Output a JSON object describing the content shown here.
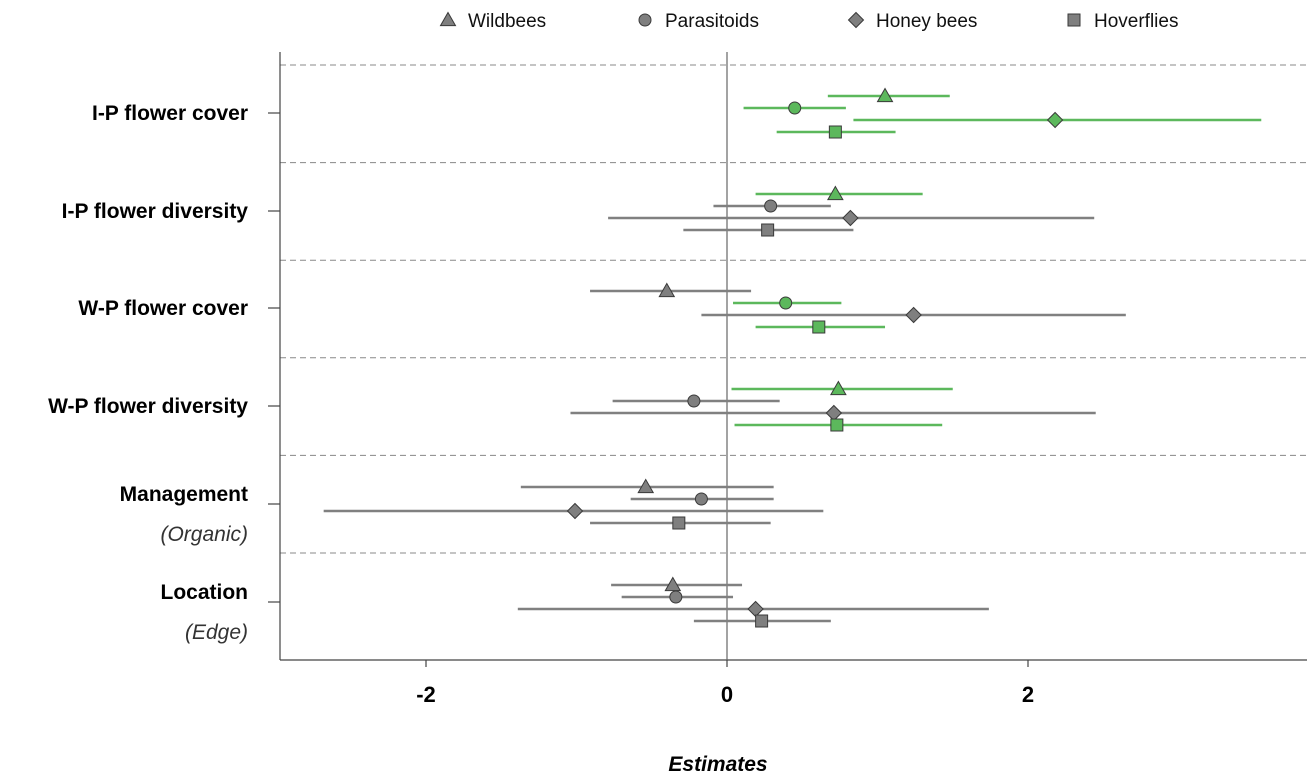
{
  "chart_data": {
    "type": "scatter",
    "subtype": "forest-plot",
    "xlabel": "Estimates",
    "xticks": [
      -2,
      0,
      2
    ],
    "xlim": [
      -2.95,
      3.9
    ],
    "reference_line": 0,
    "grid": "dashed horizontal separators between categories",
    "legend_position": "top",
    "colors": {
      "significant": "#5cb85c",
      "non_significant": "#7f7f7f",
      "line_significant": "#5cb85c",
      "line_non_significant": "#808080"
    },
    "series": [
      {
        "name": "Wildbees",
        "marker": "triangle"
      },
      {
        "name": "Parasitoids",
        "marker": "circle"
      },
      {
        "name": "Honey bees",
        "marker": "diamond"
      },
      {
        "name": "Hoverflies",
        "marker": "square"
      }
    ],
    "categories": [
      {
        "label": "I-P flower cover",
        "sublabel": "",
        "estimates": [
          {
            "series": "Wildbees",
            "est": 1.05,
            "lo": 0.67,
            "hi": 1.48,
            "significant": true
          },
          {
            "series": "Parasitoids",
            "est": 0.45,
            "lo": 0.11,
            "hi": 0.79,
            "significant": true
          },
          {
            "series": "Honey bees",
            "est": 2.18,
            "lo": 0.84,
            "hi": 3.55,
            "significant": true
          },
          {
            "series": "Hoverflies",
            "est": 0.72,
            "lo": 0.33,
            "hi": 1.12,
            "significant": true
          }
        ]
      },
      {
        "label": "I-P flower diversity",
        "sublabel": "",
        "estimates": [
          {
            "series": "Wildbees",
            "est": 0.72,
            "lo": 0.19,
            "hi": 1.3,
            "significant": true
          },
          {
            "series": "Parasitoids",
            "est": 0.29,
            "lo": -0.09,
            "hi": 0.69,
            "significant": false
          },
          {
            "series": "Honey bees",
            "est": 0.82,
            "lo": -0.79,
            "hi": 2.44,
            "significant": false
          },
          {
            "series": "Hoverflies",
            "est": 0.27,
            "lo": -0.29,
            "hi": 0.84,
            "significant": false
          }
        ]
      },
      {
        "label": "W-P flower cover",
        "sublabel": "",
        "estimates": [
          {
            "series": "Wildbees",
            "est": -0.4,
            "lo": -0.91,
            "hi": 0.16,
            "significant": false
          },
          {
            "series": "Parasitoids",
            "est": 0.39,
            "lo": 0.04,
            "hi": 0.76,
            "significant": true
          },
          {
            "series": "Honey bees",
            "est": 1.24,
            "lo": -0.17,
            "hi": 2.65,
            "significant": false
          },
          {
            "series": "Hoverflies",
            "est": 0.61,
            "lo": 0.19,
            "hi": 1.05,
            "significant": true
          }
        ]
      },
      {
        "label": "W-P flower diversity",
        "sublabel": "",
        "estimates": [
          {
            "series": "Wildbees",
            "est": 0.74,
            "lo": 0.03,
            "hi": 1.5,
            "significant": true
          },
          {
            "series": "Parasitoids",
            "est": -0.22,
            "lo": -0.76,
            "hi": 0.35,
            "significant": false
          },
          {
            "series": "Honey bees",
            "est": 0.71,
            "lo": -1.04,
            "hi": 2.45,
            "significant": false
          },
          {
            "series": "Hoverflies",
            "est": 0.73,
            "lo": 0.05,
            "hi": 1.43,
            "significant": true
          }
        ]
      },
      {
        "label": "Management",
        "sublabel": "(Organic)",
        "estimates": [
          {
            "series": "Wildbees",
            "est": -0.54,
            "lo": -1.37,
            "hi": 0.31,
            "significant": false
          },
          {
            "series": "Parasitoids",
            "est": -0.17,
            "lo": -0.64,
            "hi": 0.31,
            "significant": false
          },
          {
            "series": "Honey bees",
            "est": -1.01,
            "lo": -2.68,
            "hi": 0.64,
            "significant": false
          },
          {
            "series": "Hoverflies",
            "est": -0.32,
            "lo": -0.91,
            "hi": 0.29,
            "significant": false
          }
        ]
      },
      {
        "label": "Location",
        "sublabel": "(Edge)",
        "estimates": [
          {
            "series": "Wildbees",
            "est": -0.36,
            "lo": -0.77,
            "hi": 0.1,
            "significant": false
          },
          {
            "series": "Parasitoids",
            "est": -0.34,
            "lo": -0.7,
            "hi": 0.04,
            "significant": false
          },
          {
            "series": "Honey bees",
            "est": 0.19,
            "lo": -1.39,
            "hi": 1.74,
            "significant": false
          },
          {
            "series": "Hoverflies",
            "est": 0.23,
            "lo": -0.22,
            "hi": 0.69,
            "significant": false
          }
        ]
      }
    ]
  }
}
